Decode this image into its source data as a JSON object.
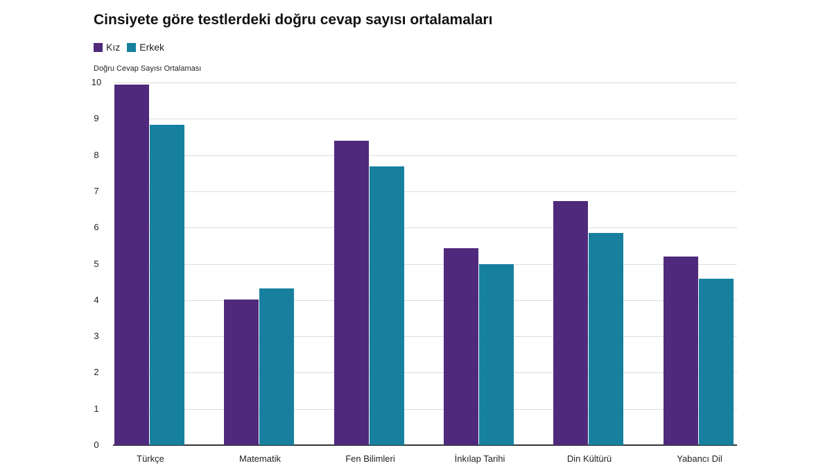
{
  "title": "Cinsiyete göre testlerdeki doğru cevap sayısı ortalamaları",
  "legend": [
    {
      "label": "Kız",
      "color": "#4f2a7c"
    },
    {
      "label": "Erkek",
      "color": "#17809e"
    }
  ],
  "ylabel": "Doğru Cevap Sayısı Ortalaması",
  "chart_data": {
    "type": "bar",
    "title": "Cinsiyete göre testlerdeki doğru cevap sayısı ortalamaları",
    "xlabel": "",
    "ylabel": "Doğru Cevap Sayısı Ortalaması",
    "ylim": [
      0,
      10
    ],
    "yticks": [
      0,
      1,
      2,
      3,
      4,
      5,
      6,
      7,
      8,
      9,
      10
    ],
    "grid": true,
    "legend_position": "top-left",
    "categories": [
      "Türkçe",
      "Matematik",
      "Fen Bilimleri",
      "İnkılap Tarihi",
      "Din Kültürü",
      "Yabancı Dil"
    ],
    "series": [
      {
        "name": "Kız",
        "color": "#4f2a7c",
        "values": [
          9.94,
          4.02,
          8.4,
          5.43,
          6.73,
          5.2
        ]
      },
      {
        "name": "Erkek",
        "color": "#17809e",
        "values": [
          8.83,
          4.32,
          7.68,
          4.99,
          5.85,
          4.59
        ]
      }
    ]
  }
}
